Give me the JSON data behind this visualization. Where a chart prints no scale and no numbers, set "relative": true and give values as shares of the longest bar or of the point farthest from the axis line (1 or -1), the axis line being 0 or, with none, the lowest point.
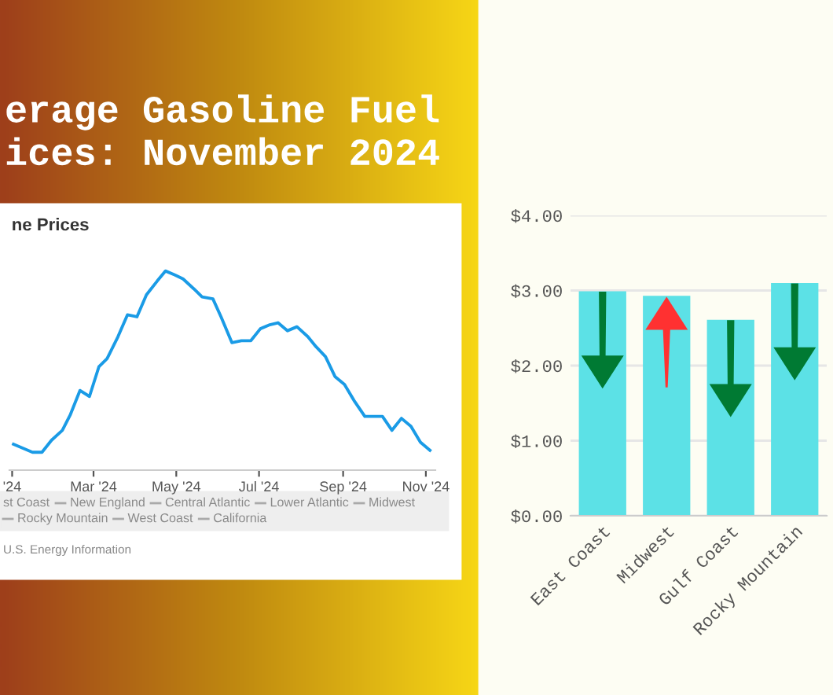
{
  "chart_data": [
    {
      "type": "other",
      "title": "erage Gasoline Fuel\nices: November 2024"
    },
    {
      "type": "line",
      "title": "ne Prices",
      "relative": true,
      "x": [
        "2024-01-02",
        "2024-01-16",
        "2024-01-23",
        "2024-01-30",
        "2024-02-07",
        "2024-02-13",
        "2024-02-20",
        "2024-02-27",
        "2024-03-05",
        "2024-03-11",
        "2024-03-19",
        "2024-03-26",
        "2024-04-02",
        "2024-04-09",
        "2024-04-17",
        "2024-04-23",
        "2024-04-30",
        "2024-05-06",
        "2024-05-14",
        "2024-05-20",
        "2024-05-28",
        "2024-06-03",
        "2024-06-11",
        "2024-06-18",
        "2024-06-25",
        "2024-07-02",
        "2024-07-09",
        "2024-07-15",
        "2024-07-22",
        "2024-07-29",
        "2024-08-06",
        "2024-08-12",
        "2024-08-19",
        "2024-08-26",
        "2024-09-02",
        "2024-09-09",
        "2024-09-17",
        "2024-09-23",
        "2024-09-30",
        "2024-10-07",
        "2024-10-14",
        "2024-10-21",
        "2024-10-28",
        "2024-11-04"
      ],
      "series": [
        {
          "color": "#1a9be6",
          "values": [
            0.13,
            0.09,
            0.09,
            0.15,
            0.2,
            0.28,
            0.4,
            0.37,
            0.52,
            0.56,
            0.67,
            0.78,
            0.77,
            0.88,
            0.95,
            1,
            0.98,
            0.96,
            0.91,
            0.87,
            0.86,
            0.77,
            0.64,
            0.65,
            0.65,
            0.71,
            0.73,
            0.74,
            0.7,
            0.72,
            0.67,
            0.62,
            0.57,
            0.47,
            0.43,
            0.35,
            0.27,
            0.27,
            0.27,
            0.2,
            0.26,
            0.22,
            0.14,
            0.1
          ]
        }
      ],
      "xlim": [
        "2023-12-30",
        "2024-11-08"
      ],
      "xticks": [
        {
          "value": "2024-01-01",
          "label": "'24"
        },
        {
          "value": "2024-03-01",
          "label": "Mar '24"
        },
        {
          "value": "2024-05-01",
          "label": "May '24"
        },
        {
          "value": "2024-07-01",
          "label": "Jul '24"
        },
        {
          "value": "2024-09-01",
          "label": "Sep '24"
        },
        {
          "value": "2024-11-01",
          "label": "Nov '24"
        }
      ],
      "annotations": [
        "st Coast",
        "New England",
        "Central Atlantic",
        "Lower Atlantic",
        "Midwest",
        "Rocky Mountain",
        "West Coast",
        "California",
        "U.S. Energy Information"
      ]
    },
    {
      "type": "bar",
      "categories": [
        "East Coast",
        "Midwest",
        "Gulf Coast",
        "Rocky Mountain"
      ],
      "values": [
        2.99,
        2.93,
        2.61,
        3.1
      ],
      "color": "#5ce1e6",
      "ylim": [
        0,
        4
      ],
      "yticks": [
        {
          "value": 0,
          "label": "$0.00"
        },
        {
          "value": 1,
          "label": "$1.00"
        },
        {
          "value": 2,
          "label": "$2.00"
        },
        {
          "value": 3,
          "label": "$3.00"
        },
        {
          "value": 4,
          "label": "$4.00"
        }
      ],
      "grid": "y"
    }
  ]
}
